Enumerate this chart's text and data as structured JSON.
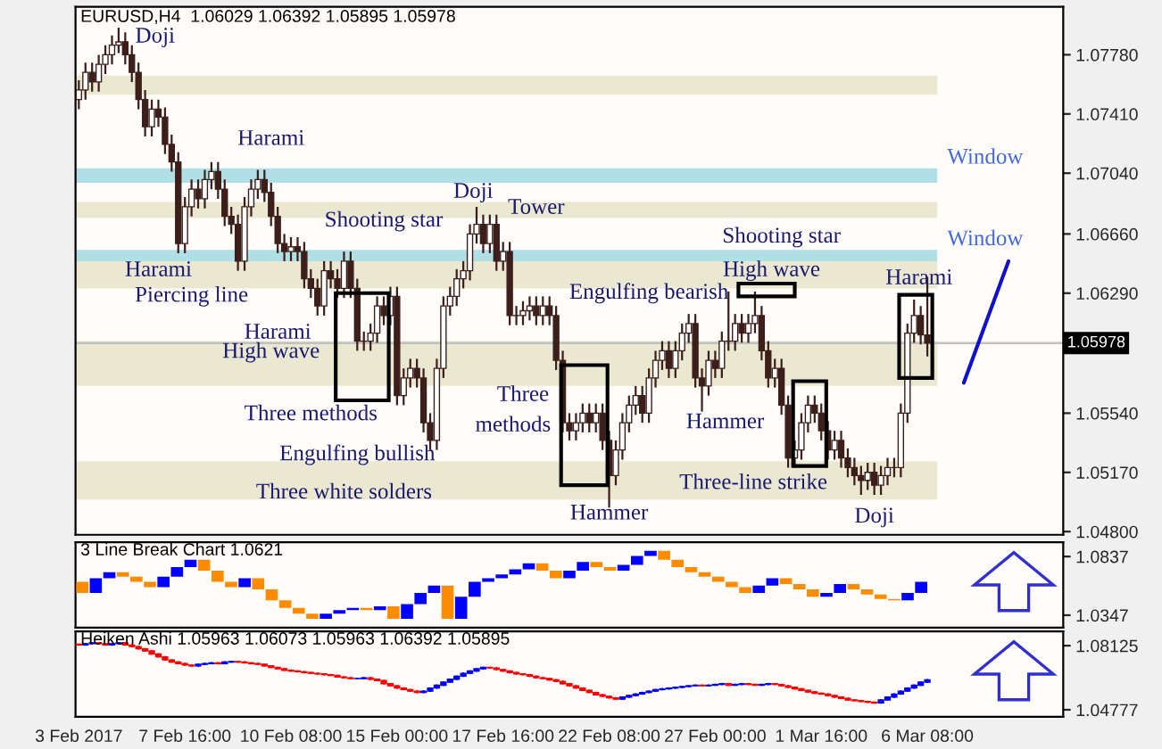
{
  "chart_data": [
    {
      "type": "candlestick",
      "title": "EURUSD,H4  1.06029 1.06392 1.05895 1.05978",
      "categories": [
        null,
        null,
        null,
        null,
        null,
        null,
        null,
        null,
        null,
        null,
        null,
        null,
        null,
        null,
        null,
        null,
        null,
        null,
        null,
        null,
        null,
        null,
        null,
        null,
        null,
        null,
        null,
        null,
        null,
        null,
        null,
        null,
        null,
        null,
        null,
        null,
        null,
        null,
        null,
        null,
        null,
        null,
        null,
        null,
        null,
        null,
        null,
        null,
        null,
        null,
        null,
        null,
        null,
        null,
        null,
        null,
        null,
        null,
        null,
        null,
        null,
        null,
        null,
        null,
        null,
        null,
        null,
        null,
        null,
        null,
        null,
        null,
        null,
        null,
        null,
        null,
        null,
        null,
        null,
        null,
        null,
        null,
        null,
        null,
        null,
        null,
        null,
        null,
        null,
        null,
        null,
        null,
        null,
        null,
        null,
        null,
        null,
        null,
        null,
        null,
        null,
        null,
        null,
        null,
        null,
        null,
        null,
        null,
        null,
        null,
        null,
        null,
        null,
        null,
        null,
        null,
        null,
        null,
        null,
        null,
        null,
        null,
        null,
        null,
        null,
        null,
        null,
        null,
        null,
        null,
        null,
        null,
        null,
        null,
        null,
        null,
        null,
        null,
        null,
        null,
        null,
        null,
        null,
        null,
        null,
        null,
        null,
        null,
        null
      ],
      "ohlc": [
        [
          1.075,
          1.0762,
          1.0744,
          1.0756
        ],
        [
          1.0756,
          1.0773,
          1.075,
          1.0767
        ],
        [
          1.0767,
          1.0773,
          1.0755,
          1.0761
        ],
        [
          1.0761,
          1.0778,
          1.0755,
          1.0772
        ],
        [
          1.0772,
          1.0784,
          1.0766,
          1.0778
        ],
        [
          1.0778,
          1.079,
          1.0772,
          1.0784
        ],
        [
          1.0784,
          1.0795,
          1.0779,
          1.0786
        ],
        [
          1.0786,
          1.0792,
          1.0772,
          1.0778
        ],
        [
          1.0778,
          1.0784,
          1.0761,
          1.0767
        ],
        [
          1.0767,
          1.0773,
          1.0744,
          1.075
        ],
        [
          1.075,
          1.0756,
          1.0727,
          1.0733
        ],
        [
          1.0733,
          1.075,
          1.0727,
          1.0744
        ],
        [
          1.0744,
          1.075,
          1.0733,
          1.0739
        ],
        [
          1.0739,
          1.0745,
          1.0716,
          1.0722
        ],
        [
          1.0722,
          1.0728,
          1.0705,
          1.0711
        ],
        [
          1.0711,
          1.0717,
          1.0654,
          1.066
        ],
        [
          1.066,
          1.0689,
          1.0654,
          1.0683
        ],
        [
          1.0683,
          1.07,
          1.0677,
          1.0694
        ],
        [
          1.0694,
          1.07,
          1.0682,
          1.0688
        ],
        [
          1.0688,
          1.0706,
          1.0682,
          1.07
        ],
        [
          1.07,
          1.0711,
          1.0694,
          1.0705
        ],
        [
          1.0705,
          1.0711,
          1.0688,
          1.0694
        ],
        [
          1.0694,
          1.07,
          1.0671,
          1.0677
        ],
        [
          1.0677,
          1.0683,
          1.0666,
          1.0672
        ],
        [
          1.0672,
          1.0678,
          1.0643,
          1.0649
        ],
        [
          1.0649,
          1.0689,
          1.0643,
          1.0683
        ],
        [
          1.0683,
          1.07,
          1.0677,
          1.0694
        ],
        [
          1.0694,
          1.0706,
          1.0688,
          1.07
        ],
        [
          1.07,
          1.0706,
          1.0686,
          1.0692
        ],
        [
          1.0692,
          1.0698,
          1.0671,
          1.0677
        ],
        [
          1.0677,
          1.0683,
          1.0654,
          1.066
        ],
        [
          1.066,
          1.0666,
          1.0649,
          1.0655
        ],
        [
          1.0655,
          1.0664,
          1.0649,
          1.0658
        ],
        [
          1.0658,
          1.0664,
          1.0649,
          1.0655
        ],
        [
          1.0655,
          1.0661,
          1.0632,
          1.0638
        ],
        [
          1.0638,
          1.0644,
          1.0626,
          1.0632
        ],
        [
          1.0632,
          1.0638,
          1.0615,
          1.0621
        ],
        [
          1.0621,
          1.0649,
          1.0615,
          1.0643
        ],
        [
          1.0643,
          1.0649,
          1.0632,
          1.0638
        ],
        [
          1.0638,
          1.0644,
          1.0626,
          1.0632
        ],
        [
          1.0632,
          1.0655,
          1.0626,
          1.0649
        ],
        [
          1.0649,
          1.0655,
          1.0626,
          1.0632
        ],
        [
          1.0632,
          1.0638,
          1.0593,
          1.0599
        ],
        [
          1.0599,
          1.0605,
          1.0593,
          1.0599
        ],
        [
          1.0599,
          1.061,
          1.0593,
          1.0604
        ],
        [
          1.0604,
          1.0627,
          1.0598,
          1.0621
        ],
        [
          1.0621,
          1.0627,
          1.0609,
          1.0615
        ],
        [
          1.0615,
          1.0633,
          1.0609,
          1.0627
        ],
        [
          1.0627,
          1.0633,
          1.0559,
          1.0565
        ],
        [
          1.0565,
          1.0582,
          1.0559,
          1.0576
        ],
        [
          1.0576,
          1.0588,
          1.057,
          1.0582
        ],
        [
          1.0582,
          1.0588,
          1.057,
          1.0576
        ],
        [
          1.0576,
          1.0582,
          1.0542,
          1.0548
        ],
        [
          1.0548,
          1.0554,
          1.0531,
          1.0537
        ],
        [
          1.0537,
          1.0588,
          1.0531,
          1.0582
        ],
        [
          1.0582,
          1.0627,
          1.0576,
          1.0621
        ],
        [
          1.0621,
          1.0633,
          1.0615,
          1.0627
        ],
        [
          1.0627,
          1.0644,
          1.0621,
          1.0638
        ],
        [
          1.0638,
          1.0649,
          1.0632,
          1.0643
        ],
        [
          1.0643,
          1.0672,
          1.0637,
          1.0666
        ],
        [
          1.0666,
          1.0683,
          1.066,
          1.0672
        ],
        [
          1.0672,
          1.0678,
          1.0654,
          1.066
        ],
        [
          1.066,
          1.0678,
          1.0654,
          1.0672
        ],
        [
          1.0672,
          1.0678,
          1.0643,
          1.0649
        ],
        [
          1.0649,
          1.0661,
          1.0643,
          1.0655
        ],
        [
          1.0655,
          1.0661,
          1.0609,
          1.0615
        ],
        [
          1.0615,
          1.0621,
          1.0609,
          1.0615
        ],
        [
          1.0615,
          1.0624,
          1.0609,
          1.0618
        ],
        [
          1.0618,
          1.0627,
          1.0612,
          1.0621
        ],
        [
          1.0621,
          1.0627,
          1.0609,
          1.0615
        ],
        [
          1.0615,
          1.0627,
          1.0609,
          1.0621
        ],
        [
          1.0621,
          1.0627,
          1.0609,
          1.0615
        ],
        [
          1.0615,
          1.0621,
          1.0581,
          1.0587
        ],
        [
          1.0587,
          1.0593,
          1.0542,
          1.0548
        ],
        [
          1.0548,
          1.0554,
          1.0537,
          1.0543
        ],
        [
          1.0543,
          1.0554,
          1.0537,
          1.0548
        ],
        [
          1.0548,
          1.056,
          1.0542,
          1.0554
        ],
        [
          1.0554,
          1.056,
          1.0542,
          1.0548
        ],
        [
          1.0548,
          1.056,
          1.0542,
          1.0554
        ],
        [
          1.0554,
          1.056,
          1.0531,
          1.0537
        ],
        [
          1.0537,
          1.0543,
          1.0495,
          1.0515
        ],
        [
          1.0515,
          1.0537,
          1.0509,
          1.0531
        ],
        [
          1.0531,
          1.0554,
          1.0525,
          1.0548
        ],
        [
          1.0548,
          1.0565,
          1.0542,
          1.0559
        ],
        [
          1.0559,
          1.0571,
          1.0553,
          1.0565
        ],
        [
          1.0565,
          1.0571,
          1.0548,
          1.0554
        ],
        [
          1.0554,
          1.0582,
          1.0548,
          1.0576
        ],
        [
          1.0576,
          1.0593,
          1.057,
          1.0587
        ],
        [
          1.0587,
          1.0599,
          1.0581,
          1.0593
        ],
        [
          1.0593,
          1.0599,
          1.0576,
          1.0582
        ],
        [
          1.0582,
          1.0599,
          1.0576,
          1.0593
        ],
        [
          1.0593,
          1.061,
          1.0587,
          1.0604
        ],
        [
          1.0604,
          1.0616,
          1.0598,
          1.061
        ],
        [
          1.061,
          1.0616,
          1.057,
          1.0576
        ],
        [
          1.0576,
          1.0582,
          1.0555,
          1.0571
        ],
        [
          1.0571,
          1.0593,
          1.0565,
          1.0587
        ],
        [
          1.0587,
          1.0593,
          1.0576,
          1.0582
        ],
        [
          1.0582,
          1.0605,
          1.0576,
          1.0599
        ],
        [
          1.0599,
          1.063,
          1.0593,
          1.0599
        ],
        [
          1.0599,
          1.0616,
          1.0593,
          1.061
        ],
        [
          1.061,
          1.0616,
          1.0598,
          1.0604
        ],
        [
          1.0604,
          1.0616,
          1.0598,
          1.061
        ],
        [
          1.061,
          1.063,
          1.0604,
          1.0615
        ],
        [
          1.0615,
          1.0621,
          1.0587,
          1.0593
        ],
        [
          1.0593,
          1.0599,
          1.057,
          1.0576
        ],
        [
          1.0576,
          1.0588,
          1.057,
          1.0582
        ],
        [
          1.0582,
          1.0588,
          1.0553,
          1.0559
        ],
        [
          1.0559,
          1.0565,
          1.052,
          1.0526
        ],
        [
          1.0526,
          1.0537,
          1.052,
          1.0531
        ],
        [
          1.0531,
          1.0554,
          1.0525,
          1.0548
        ],
        [
          1.0548,
          1.0565,
          1.0542,
          1.0559
        ],
        [
          1.0559,
          1.0565,
          1.0548,
          1.0554
        ],
        [
          1.0554,
          1.056,
          1.0537,
          1.0543
        ],
        [
          1.0543,
          1.0549,
          1.0525,
          1.0531
        ],
        [
          1.0531,
          1.0543,
          1.0525,
          1.0537
        ],
        [
          1.0537,
          1.0543,
          1.052,
          1.0526
        ],
        [
          1.0526,
          1.0532,
          1.0514,
          1.052
        ],
        [
          1.052,
          1.0526,
          1.0509,
          1.0515
        ],
        [
          1.0515,
          1.0521,
          1.0503,
          1.0512
        ],
        [
          1.0512,
          1.0523,
          1.0506,
          1.0517
        ],
        [
          1.0517,
          1.0523,
          1.0503,
          1.0509
        ],
        [
          1.0509,
          1.0521,
          1.0503,
          1.0515
        ],
        [
          1.0515,
          1.0526,
          1.0509,
          1.052
        ],
        [
          1.052,
          1.0526,
          1.0514,
          1.052
        ],
        [
          1.052,
          1.056,
          1.0514,
          1.0554
        ],
        [
          1.0554,
          1.061,
          1.0548,
          1.0604
        ],
        [
          1.0604,
          1.0625,
          1.0598,
          1.0615
        ],
        [
          1.0615,
          1.0621,
          1.0597,
          1.06029
        ],
        [
          1.06029,
          1.06392,
          1.05895,
          1.05978
        ],
        null,
        null,
        null,
        null,
        null,
        null,
        null,
        null,
        null,
        null,
        null,
        null,
        null,
        null,
        null,
        null,
        null,
        null,
        null,
        null
      ],
      "ylim": [
        1.0478,
        1.0808
      ],
      "yticks": [
        {
          "value": 1.048,
          "label": "1.04800"
        },
        {
          "value": 1.0517,
          "label": "1.05170"
        },
        {
          "value": 1.0554,
          "label": "1.05540"
        },
        {
          "value": 1.0629,
          "label": "1.06290"
        },
        {
          "value": 1.0666,
          "label": "1.06660"
        },
        {
          "value": 1.0704,
          "label": "1.07040"
        },
        {
          "value": 1.0741,
          "label": "1.07410"
        },
        {
          "value": 1.0778,
          "label": "1.07780"
        }
      ],
      "tick_labels": "y",
      "ref_lines": [
        {
          "axis": "y",
          "value": 1.05978,
          "label": "1.05978",
          "color": "#c0c0c0"
        }
      ],
      "bands": [
        {
          "axis": "y",
          "from": 1.0753,
          "to": 1.0765,
          "color": "#ebe8d2"
        },
        {
          "axis": "y",
          "from": 1.0698,
          "to": 1.0707,
          "label": "Window",
          "color": "#b0e0e6"
        },
        {
          "axis": "y",
          "from": 1.0676,
          "to": 1.0686,
          "color": "#ebe8d2"
        },
        {
          "axis": "y",
          "from": 1.0632,
          "to": 1.0649,
          "color": "#ebe8d2"
        },
        {
          "axis": "y",
          "from": 1.0649,
          "to": 1.0656,
          "label": "Window",
          "color": "#b0e0e6"
        },
        {
          "axis": "y",
          "from": 1.0571,
          "to": 1.0599,
          "color": "#ebe8d2"
        },
        {
          "axis": "y",
          "from": 1.05,
          "to": 1.0524,
          "color": "#ebe8d2"
        }
      ],
      "annotations": [
        "Doji",
        "Harami",
        "Harami",
        "Piercing line",
        "Harami",
        "High wave",
        "Shooting star",
        "Doji",
        "Tower",
        "Three methods",
        "Engulfing bullish",
        "Three white solders",
        "Engulfing bearish",
        "Three",
        "methods",
        "Hammer",
        "Hammer",
        "Shooting star",
        "High wave",
        "Three-line strike",
        "Doji",
        "Harami"
      ]
    },
    {
      "type": "bar",
      "title": "3 Line Break Chart 1.0621",
      "categories": [
        null,
        null,
        null,
        null,
        null,
        null,
        null,
        null,
        null,
        null,
        null,
        null,
        null,
        null,
        null,
        null,
        null,
        null,
        null,
        null,
        null,
        null,
        null,
        null,
        null,
        null,
        null,
        null,
        null,
        null,
        null,
        null,
        null,
        null,
        null,
        null,
        null,
        null,
        null,
        null,
        null,
        null,
        null,
        null,
        null,
        null,
        null,
        null,
        null,
        null,
        null,
        null,
        null,
        null,
        null,
        null,
        null,
        null,
        null,
        null,
        null,
        null,
        null,
        null,
        null,
        null,
        null,
        null,
        null,
        null,
        null,
        null,
        null
      ],
      "base": [
        1.0533,
        1.0533,
        1.0656,
        1.0669,
        1.0625,
        1.0582,
        1.0582,
        1.0669,
        1.0749,
        1.0718,
        1.0625,
        1.0582,
        1.0582,
        1.0563,
        1.0471,
        1.0409,
        1.0359,
        1.0316,
        1.0316,
        1.0359,
        1.039,
        1.039,
        1.039,
        1.0316,
        1.0316,
        1.044,
        1.0533,
        1.0316,
        1.0316,
        1.0502,
        1.0625,
        1.0656,
        1.0687,
        1.0731,
        1.0718,
        1.0656,
        1.0656,
        1.0718,
        1.0749,
        1.0718,
        1.0718,
        1.0768,
        1.0842,
        1.0811,
        1.0749,
        1.0706,
        1.0669,
        1.0625,
        1.0582,
        1.0533,
        1.0533,
        1.0594,
        1.0607,
        1.0563,
        1.0502,
        1.0502,
        1.0533,
        1.0563,
        1.052,
        1.0483,
        1.0471,
        1.0471,
        1.0533,
        null,
        null,
        null,
        null,
        null,
        null,
        null,
        null,
        null,
        null
      ],
      "values": [
        0.0092,
        0.0123,
        0.005,
        0.0037,
        0.0044,
        0.0043,
        0.0087,
        0.008,
        0.0062,
        0.0093,
        0.0093,
        0.0043,
        0.0074,
        0.0093,
        0.0092,
        0.0062,
        0.005,
        0.0043,
        0.0043,
        0.0031,
        0.0019,
        0.0019,
        0.0031,
        0.0105,
        0.0124,
        0.0093,
        0.0061,
        0.0278,
        0.0186,
        0.0123,
        0.0031,
        0.0031,
        0.0044,
        0.0049,
        0.0062,
        0.0062,
        0.0062,
        0.0074,
        0.0043,
        0.0031,
        0.005,
        0.0074,
        0.0043,
        0.0074,
        0.0062,
        0.0043,
        0.0037,
        0.0044,
        0.0043,
        0.0049,
        0.0061,
        0.0062,
        0.0049,
        0.0044,
        0.0061,
        0.0031,
        0.0074,
        0.0044,
        0.0043,
        0.0037,
        0.0012,
        0.0062,
        0.0092,
        null,
        null,
        null,
        null,
        null,
        null,
        null,
        null,
        null,
        null
      ],
      "colors": [
        "#ff8c00",
        "#0000ff",
        "#0000ff",
        "#ff8c00",
        "#ff8c00",
        "#ff8c00",
        "#0000ff",
        "#0000ff",
        "#0000ff",
        "#ff8c00",
        "#ff8c00",
        "#ff8c00",
        "#0000ff",
        "#ff8c00",
        "#ff8c00",
        "#ff8c00",
        "#ff8c00",
        "#ff8c00",
        "#0000ff",
        "#0000ff",
        "#0000ff",
        "#ff8c00",
        "#0000ff",
        "#ff8c00",
        "#0000ff",
        "#0000ff",
        "#0000ff",
        "#ff8c00",
        "#0000ff",
        "#0000ff",
        "#0000ff",
        "#0000ff",
        "#0000ff",
        "#0000ff",
        "#ff8c00",
        "#ff8c00",
        "#0000ff",
        "#0000ff",
        "#ff8c00",
        "#ff8c00",
        "#0000ff",
        "#0000ff",
        "#0000ff",
        "#ff8c00",
        "#ff8c00",
        "#ff8c00",
        "#ff8c00",
        "#ff8c00",
        "#ff8c00",
        "#ff8c00",
        "#0000ff",
        "#0000ff",
        "#ff8c00",
        "#ff8c00",
        "#ff8c00",
        "#0000ff",
        "#0000ff",
        "#ff8c00",
        "#ff8c00",
        "#ff8c00",
        "#ff8c00",
        "#0000ff",
        "#0000ff",
        null,
        null,
        null,
        null,
        null,
        null,
        null,
        null,
        null,
        null
      ],
      "ylim": [
        1.0243,
        1.0956
      ],
      "yticks": [
        1.0837,
        1.0347
      ],
      "tick_labels": "y"
    },
    {
      "type": "candlestick",
      "title": "Heiken Ashi 1.05963 1.06073 1.05963 1.06392 1.05895",
      "categories": [
        "3 Feb 2017",
        null,
        null,
        null,
        null,
        null,
        null,
        null,
        null,
        null,
        null,
        null,
        null,
        null,
        null,
        null,
        "7 Feb 16:00",
        null,
        null,
        null,
        null,
        null,
        null,
        null,
        null,
        null,
        null,
        null,
        null,
        null,
        null,
        null,
        "10 Feb 08:00",
        null,
        null,
        null,
        null,
        null,
        null,
        null,
        null,
        null,
        null,
        null,
        null,
        null,
        null,
        null,
        "15 Feb 00:00",
        null,
        null,
        null,
        null,
        null,
        null,
        null,
        null,
        null,
        null,
        null,
        null,
        null,
        null,
        null,
        "17 Feb 16:00",
        null,
        null,
        null,
        null,
        null,
        null,
        null,
        null,
        null,
        null,
        null,
        null,
        null,
        null,
        null,
        "22 Feb 08:00",
        null,
        null,
        null,
        null,
        null,
        null,
        null,
        null,
        null,
        null,
        null,
        null,
        null,
        null,
        null,
        "27 Feb 00:00",
        null,
        null,
        null,
        null,
        null,
        null,
        null,
        null,
        null,
        null,
        null,
        null,
        null,
        null,
        null,
        "1 Mar 16:00",
        null,
        null,
        null,
        null,
        null,
        null,
        null,
        null,
        null,
        null,
        null,
        null,
        null,
        null,
        null,
        "6 Mar 08:00",
        null,
        null,
        null,
        null,
        null,
        null,
        null,
        null,
        null,
        null,
        null,
        null,
        null,
        null,
        null,
        null,
        null,
        null,
        null,
        null
      ],
      "ohlc": [
        [
          1.082,
          1.0824,
          1.0812,
          1.0816
        ],
        [
          1.0816,
          1.0827,
          1.0812,
          1.0823
        ],
        [
          1.0823,
          1.0831,
          1.0819,
          1.0827
        ],
        [
          1.0827,
          1.0831,
          1.0819,
          1.0823
        ],
        [
          1.0823,
          1.0827,
          1.0812,
          1.0816
        ],
        [
          1.0816,
          1.0827,
          1.0812,
          1.0823
        ],
        [
          1.0823,
          1.0831,
          1.0819,
          1.0827
        ],
        [
          1.0827,
          1.0831,
          1.0812,
          1.0816
        ],
        [
          1.0816,
          1.082,
          1.0804,
          1.0808
        ],
        [
          1.0808,
          1.0812,
          1.0792,
          1.0796
        ],
        [
          1.0796,
          1.08,
          1.0781,
          1.0785
        ],
        [
          1.0785,
          1.0789,
          1.0765,
          1.0769
        ],
        [
          1.0769,
          1.0773,
          1.075,
          1.0754
        ],
        [
          1.0754,
          1.0758,
          1.0734,
          1.0738
        ],
        [
          1.0738,
          1.0742,
          1.0723,
          1.0727
        ],
        [
          1.0727,
          1.0731,
          1.0715,
          1.0719
        ],
        [
          1.0719,
          1.0723,
          1.0707,
          1.0711
        ],
        [
          1.0711,
          1.0715,
          1.0703,
          1.0707
        ],
        [
          1.0707,
          1.0719,
          1.0703,
          1.0715
        ],
        [
          1.0715,
          1.0723,
          1.0711,
          1.0719
        ],
        [
          1.0719,
          1.0727,
          1.0715,
          1.0723
        ],
        [
          1.0723,
          1.0727,
          1.0715,
          1.0719
        ],
        [
          1.0719,
          1.0731,
          1.0715,
          1.0727
        ],
        [
          1.0727,
          1.0734,
          1.0723,
          1.073
        ],
        [
          1.073,
          1.0734,
          1.0723,
          1.0727
        ],
        [
          1.0727,
          1.0731,
          1.0719,
          1.0723
        ],
        [
          1.0723,
          1.0727,
          1.0715,
          1.0719
        ],
        [
          1.0719,
          1.0723,
          1.0711,
          1.0715
        ],
        [
          1.0715,
          1.0719,
          1.0703,
          1.0707
        ],
        [
          1.0707,
          1.0711,
          1.0695,
          1.0699
        ],
        [
          1.0699,
          1.0703,
          1.0688,
          1.0692
        ],
        [
          1.0692,
          1.0696,
          1.068,
          1.0684
        ],
        [
          1.0684,
          1.0688,
          1.0676,
          1.068
        ],
        [
          1.068,
          1.0684,
          1.0672,
          1.0676
        ],
        [
          1.0676,
          1.068,
          1.0668,
          1.0672
        ],
        [
          1.0672,
          1.0676,
          1.0664,
          1.0668
        ],
        [
          1.0668,
          1.0672,
          1.0661,
          1.0665
        ],
        [
          1.0665,
          1.0669,
          1.0657,
          1.0661
        ],
        [
          1.0661,
          1.0665,
          1.0653,
          1.0657
        ],
        [
          1.0657,
          1.0661,
          1.0645,
          1.0649
        ],
        [
          1.0649,
          1.0653,
          1.0641,
          1.0645
        ],
        [
          1.0645,
          1.0649,
          1.0637,
          1.0641
        ],
        [
          1.0641,
          1.0645,
          1.0637,
          1.0641
        ],
        [
          1.0641,
          1.0649,
          1.0637,
          1.0645
        ],
        [
          1.0645,
          1.0649,
          1.0633,
          1.0637
        ],
        [
          1.0637,
          1.0641,
          1.0626,
          1.063
        ],
        [
          1.063,
          1.0634,
          1.061,
          1.0614
        ],
        [
          1.0614,
          1.0618,
          1.0599,
          1.0603
        ],
        [
          1.0603,
          1.0607,
          1.0587,
          1.0591
        ],
        [
          1.0591,
          1.0595,
          1.0579,
          1.0583
        ],
        [
          1.0583,
          1.0587,
          1.0571,
          1.0575
        ],
        [
          1.0575,
          1.0579,
          1.0564,
          1.0568
        ],
        [
          1.0568,
          1.0579,
          1.0564,
          1.0575
        ],
        [
          1.0575,
          1.0595,
          1.0571,
          1.0591
        ],
        [
          1.0591,
          1.061,
          1.0587,
          1.0606
        ],
        [
          1.0606,
          1.0626,
          1.0602,
          1.0622
        ],
        [
          1.0622,
          1.0641,
          1.0618,
          1.0637
        ],
        [
          1.0637,
          1.0657,
          1.0633,
          1.0653
        ],
        [
          1.0653,
          1.0672,
          1.0649,
          1.0668
        ],
        [
          1.0668,
          1.0684,
          1.0664,
          1.068
        ],
        [
          1.068,
          1.0696,
          1.0676,
          1.0692
        ],
        [
          1.0692,
          1.0703,
          1.0688,
          1.0699
        ],
        [
          1.0699,
          1.0703,
          1.0692,
          1.0696
        ],
        [
          1.0696,
          1.07,
          1.0684,
          1.0688
        ],
        [
          1.0688,
          1.0692,
          1.0676,
          1.068
        ],
        [
          1.068,
          1.0684,
          1.0668,
          1.0672
        ],
        [
          1.0672,
          1.0676,
          1.0661,
          1.0665
        ],
        [
          1.0665,
          1.0669,
          1.0657,
          1.0661
        ],
        [
          1.0661,
          1.0665,
          1.0649,
          1.0653
        ],
        [
          1.0653,
          1.0657,
          1.0641,
          1.0645
        ],
        [
          1.0645,
          1.0649,
          1.0637,
          1.0641
        ],
        [
          1.0641,
          1.0645,
          1.063,
          1.0634
        ],
        [
          1.0634,
          1.0638,
          1.0622,
          1.0626
        ],
        [
          1.0626,
          1.063,
          1.061,
          1.0614
        ],
        [
          1.0614,
          1.0618,
          1.0599,
          1.0603
        ],
        [
          1.0603,
          1.0607,
          1.0587,
          1.0591
        ],
        [
          1.0591,
          1.0595,
          1.0575,
          1.0579
        ],
        [
          1.0579,
          1.0583,
          1.0564,
          1.0568
        ],
        [
          1.0568,
          1.0572,
          1.0552,
          1.0556
        ],
        [
          1.0556,
          1.056,
          1.0544,
          1.0548
        ],
        [
          1.0548,
          1.0552,
          1.0536,
          1.054
        ],
        [
          1.054,
          1.0544,
          1.0529,
          1.0533
        ],
        [
          1.0533,
          1.0548,
          1.0529,
          1.0544
        ],
        [
          1.0544,
          1.0556,
          1.054,
          1.0552
        ],
        [
          1.0552,
          1.0564,
          1.0548,
          1.056
        ],
        [
          1.056,
          1.0572,
          1.0556,
          1.0568
        ],
        [
          1.0568,
          1.0579,
          1.0564,
          1.0575
        ],
        [
          1.0575,
          1.0587,
          1.0571,
          1.0583
        ],
        [
          1.0583,
          1.0591,
          1.0579,
          1.0587
        ],
        [
          1.0587,
          1.0595,
          1.0583,
          1.0591
        ],
        [
          1.0591,
          1.0599,
          1.0587,
          1.0595
        ],
        [
          1.0595,
          1.0603,
          1.0591,
          1.0599
        ],
        [
          1.0599,
          1.0607,
          1.0595,
          1.0603
        ],
        [
          1.0603,
          1.061,
          1.0599,
          1.0606
        ],
        [
          1.0606,
          1.061,
          1.0599,
          1.0603
        ],
        [
          1.0603,
          1.061,
          1.0599,
          1.0606
        ],
        [
          1.0606,
          1.0614,
          1.0602,
          1.061
        ],
        [
          1.061,
          1.0618,
          1.0606,
          1.0614
        ],
        [
          1.0614,
          1.0618,
          1.0602,
          1.0606
        ],
        [
          1.0606,
          1.0614,
          1.0602,
          1.061
        ],
        [
          1.061,
          1.0618,
          1.0606,
          1.0614
        ],
        [
          1.0614,
          1.0618,
          1.0606,
          1.061
        ],
        [
          1.061,
          1.0614,
          1.0602,
          1.0606
        ],
        [
          1.0606,
          1.0614,
          1.0602,
          1.061
        ],
        [
          1.061,
          1.0618,
          1.0606,
          1.0614
        ],
        [
          1.0614,
          1.0618,
          1.0606,
          1.061
        ],
        [
          1.061,
          1.0614,
          1.0599,
          1.0603
        ],
        [
          1.0603,
          1.0607,
          1.0591,
          1.0595
        ],
        [
          1.0595,
          1.0599,
          1.0583,
          1.0587
        ],
        [
          1.0587,
          1.0591,
          1.0575,
          1.0579
        ],
        [
          1.0579,
          1.0583,
          1.0567,
          1.0571
        ],
        [
          1.0571,
          1.0575,
          1.056,
          1.0564
        ],
        [
          1.0564,
          1.0568,
          1.0556,
          1.056
        ],
        [
          1.056,
          1.0564,
          1.0548,
          1.0552
        ],
        [
          1.0552,
          1.0556,
          1.054,
          1.0544
        ],
        [
          1.0544,
          1.0548,
          1.0533,
          1.0537
        ],
        [
          1.0537,
          1.0541,
          1.0525,
          1.0529
        ],
        [
          1.0529,
          1.0533,
          1.0521,
          1.0525
        ],
        [
          1.0525,
          1.0529,
          1.0517,
          1.0521
        ],
        [
          1.0521,
          1.0525,
          1.0513,
          1.0517
        ],
        [
          1.0517,
          1.0521,
          1.0509,
          1.0513
        ],
        [
          1.0513,
          1.0533,
          1.0509,
          1.0529
        ],
        [
          1.0529,
          1.0548,
          1.0525,
          1.0544
        ],
        [
          1.0544,
          1.0564,
          1.054,
          1.056
        ],
        [
          1.056,
          1.0579,
          1.0556,
          1.0575
        ],
        [
          1.0575,
          1.0595,
          1.0571,
          1.0591
        ],
        [
          1.0591,
          1.061,
          1.0587,
          1.0606
        ],
        [
          1.0606,
          1.0626,
          1.0602,
          1.0622
        ],
        [
          1.0622,
          1.0638,
          1.0618,
          1.0634
        ],
        null,
        null,
        null,
        null,
        null,
        null,
        null,
        null,
        null,
        null,
        null,
        null,
        null,
        null,
        null,
        null,
        null,
        null,
        null,
        null
      ],
      "ylim": [
        1.0441,
        1.0887
      ],
      "yticks": [
        1.08125,
        1.04777
      ]
    }
  ]
}
